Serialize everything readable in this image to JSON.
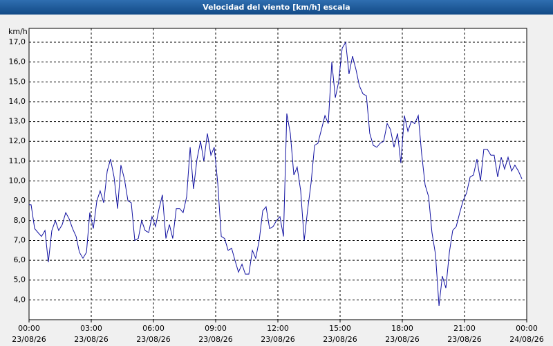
{
  "chart_data": {
    "type": "line",
    "title": "Velocidad del viento [km/h] escala",
    "ylabel": "km/h",
    "color": "#1010a0",
    "grid": true,
    "xlim": [
      0,
      24
    ],
    "xticks": [
      {
        "value": 0,
        "label": "00:00",
        "date": "23/08/26"
      },
      {
        "value": 3,
        "label": "03:00",
        "date": "23/08/26"
      },
      {
        "value": 6,
        "label": "06:00",
        "date": "23/08/26"
      },
      {
        "value": 9,
        "label": "09:00",
        "date": "23/08/26"
      },
      {
        "value": 12,
        "label": "12:00",
        "date": "23/08/26"
      },
      {
        "value": 15,
        "label": "15:00",
        "date": "23/08/26"
      },
      {
        "value": 18,
        "label": "18:00",
        "date": "23/08/26"
      },
      {
        "value": 21,
        "label": "21:00",
        "date": "23/08/26"
      },
      {
        "value": 24,
        "label": "00:00",
        "date": "24/08/26"
      }
    ],
    "ylim": [
      3.0,
      17.7
    ],
    "yticks": [
      {
        "value": 4,
        "label": "4,0"
      },
      {
        "value": 5,
        "label": "5,0"
      },
      {
        "value": 6,
        "label": "6,0"
      },
      {
        "value": 7,
        "label": "7,0"
      },
      {
        "value": 8,
        "label": "8,0"
      },
      {
        "value": 9,
        "label": "9,0"
      },
      {
        "value": 10,
        "label": "10,0"
      },
      {
        "value": 11,
        "label": "11,0"
      },
      {
        "value": 12,
        "label": "12,0"
      },
      {
        "value": 13,
        "label": "13,0"
      },
      {
        "value": 14,
        "label": "14,0"
      },
      {
        "value": 15,
        "label": "15,0"
      },
      {
        "value": 16,
        "label": "16,0"
      },
      {
        "value": 17,
        "label": "17,0"
      }
    ],
    "x": [
      0,
      0.1,
      0.27,
      0.43,
      0.6,
      0.77,
      0.93,
      1.1,
      1.27,
      1.43,
      1.6,
      1.77,
      1.93,
      2.1,
      2.27,
      2.43,
      2.6,
      2.77,
      2.93,
      3.1,
      3.27,
      3.43,
      3.6,
      3.77,
      3.93,
      4.1,
      4.27,
      4.43,
      4.6,
      4.77,
      4.93,
      5.1,
      5.27,
      5.43,
      5.6,
      5.77,
      5.93,
      6.1,
      6.27,
      6.43,
      6.6,
      6.77,
      6.93,
      7.1,
      7.27,
      7.43,
      7.6,
      7.77,
      7.93,
      8.1,
      8.27,
      8.43,
      8.6,
      8.77,
      8.93,
      9.1,
      9.27,
      9.43,
      9.6,
      9.77,
      9.93,
      10.1,
      10.27,
      10.43,
      10.6,
      10.77,
      10.93,
      11.1,
      11.27,
      11.43,
      11.6,
      11.77,
      11.93,
      12.1,
      12.27,
      12.43,
      12.6,
      12.77,
      12.93,
      13.1,
      13.27,
      13.43,
      13.6,
      13.77,
      13.93,
      14.1,
      14.27,
      14.43,
      14.6,
      14.77,
      14.93,
      15.1,
      15.27,
      15.43,
      15.6,
      15.77,
      15.93,
      16.1,
      16.27,
      16.43,
      16.6,
      16.77,
      16.93,
      17.1,
      17.27,
      17.43,
      17.6,
      17.77,
      17.93,
      18.1,
      18.27,
      18.43,
      18.6,
      18.77,
      18.93,
      19.1,
      19.27,
      19.43,
      19.6,
      19.77,
      19.93,
      20.1,
      20.27,
      20.43,
      20.6,
      20.77,
      20.93,
      21.1,
      21.27,
      21.43,
      21.6,
      21.77,
      21.93,
      22.1,
      22.27,
      22.43,
      22.6,
      22.77,
      22.93,
      23.1,
      23.27,
      23.43,
      23.6,
      23.77
    ],
    "values": [
      8.8,
      8.8,
      7.6,
      7.4,
      7.2,
      7.5,
      5.9,
      7.5,
      8.0,
      7.5,
      7.8,
      8.4,
      8.1,
      7.6,
      7.2,
      6.4,
      6.1,
      6.4,
      8.4,
      7.6,
      9.0,
      9.5,
      8.9,
      10.5,
      11.1,
      10.2,
      8.6,
      10.8,
      10.1,
      9.0,
      8.9,
      7.0,
      7.1,
      8.0,
      7.5,
      7.4,
      8.2,
      7.7,
      8.6,
      9.3,
      7.1,
      7.8,
      7.1,
      8.6,
      8.6,
      8.4,
      9.2,
      11.7,
      9.6,
      11.1,
      12.0,
      11.0,
      12.4,
      11.3,
      11.7,
      9.9,
      7.2,
      7.1,
      6.5,
      6.6,
      6.0,
      5.4,
      5.8,
      5.3,
      5.3,
      6.5,
      6.1,
      7.0,
      8.5,
      8.7,
      7.6,
      7.7,
      8.0,
      8.2,
      7.2,
      13.4,
      12.4,
      10.3,
      10.7,
      9.5,
      7.0,
      8.5,
      9.9,
      11.8,
      11.9,
      12.6,
      13.3,
      12.9,
      16.0,
      14.2,
      15.0,
      16.7,
      17.0,
      15.4,
      16.3,
      15.6,
      14.8,
      14.4,
      14.3,
      12.4,
      11.8,
      11.7,
      11.9,
      12.0,
      12.9,
      12.6,
      11.7,
      12.4,
      10.9,
      13.3,
      12.5,
      13.0,
      12.9,
      13.3,
      11.4,
      9.8,
      9.2,
      7.4,
      6.3,
      3.7,
      5.2,
      4.6,
      6.4,
      7.5,
      7.7,
      8.4,
      9.0,
      9.4,
      10.2,
      10.3,
      11.1,
      10.0,
      11.6,
      11.6,
      11.3,
      11.3,
      10.2,
      11.2,
      10.6,
      11.2,
      10.5,
      10.8,
      10.5,
      10.1
    ]
  }
}
